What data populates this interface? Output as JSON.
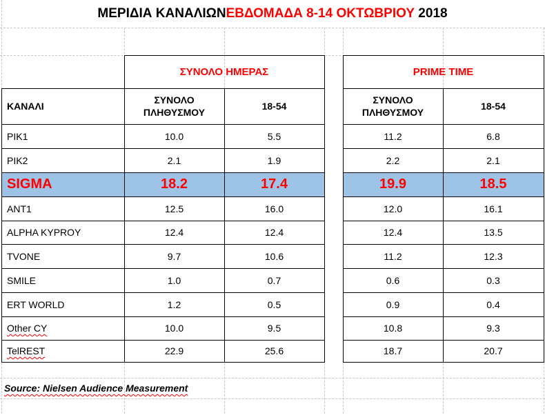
{
  "title": {
    "prefix": "ΜΕΡΙΔΙΑ ΚΑΝΑΛΙΩΝ ",
    "highlight": "ΕΒΔΟΜΑΔΑ 8-14 ΟΚΤΩΒΡΙΟΥ",
    "suffix": " 2018"
  },
  "colors": {
    "accent_red": "#ff0000",
    "highlight_row": "#9dc3e6",
    "grid": "#c8c8c8"
  },
  "groups": {
    "day": "ΣΥΝΟΛΟ ΗΜΕΡΑΣ",
    "prime": "PRIME TIME"
  },
  "columns": {
    "channel": "ΚΑΝΑΛΙ",
    "total_pop": "ΣΥΝΟΛΟ ΠΛΗΘΥΣΜΟΥ",
    "age": "18-54"
  },
  "rows": [
    {
      "channel": "PIK1",
      "day_total": "10.0",
      "day_1854": "5.5",
      "prime_total": "11.2",
      "prime_1854": "6.8"
    },
    {
      "channel": "PIK2",
      "day_total": "2.1",
      "day_1854": "1.9",
      "prime_total": "2.2",
      "prime_1854": "2.1"
    },
    {
      "channel": "SIGMA",
      "day_total": "18.2",
      "day_1854": "17.4",
      "prime_total": "19.9",
      "prime_1854": "18.5"
    },
    {
      "channel": "ANT1",
      "day_total": "12.5",
      "day_1854": "16.0",
      "prime_total": "12.0",
      "prime_1854": "16.1"
    },
    {
      "channel": "ALPHA KYPROY",
      "day_total": "12.4",
      "day_1854": "12.4",
      "prime_total": "12.4",
      "prime_1854": "13.5"
    },
    {
      "channel": "TVONE",
      "day_total": "9.7",
      "day_1854": "10.6",
      "prime_total": "11.2",
      "prime_1854": "12.3"
    },
    {
      "channel": "SMILE",
      "day_total": "1.0",
      "day_1854": "0.7",
      "prime_total": "0.6",
      "prime_1854": "0.3"
    },
    {
      "channel": "ERT WORLD",
      "day_total": "1.2",
      "day_1854": "0.5",
      "prime_total": "0.9",
      "prime_1854": "0.4"
    },
    {
      "channel": "Other CY",
      "day_total": "10.0",
      "day_1854": "9.5",
      "prime_total": "10.8",
      "prime_1854": "9.3"
    },
    {
      "channel": "TelREST",
      "day_total": "22.9",
      "day_1854": "25.6",
      "prime_total": "18.7",
      "prime_1854": "20.7"
    }
  ],
  "source": "Source: Nielsen Audience Measurement"
}
